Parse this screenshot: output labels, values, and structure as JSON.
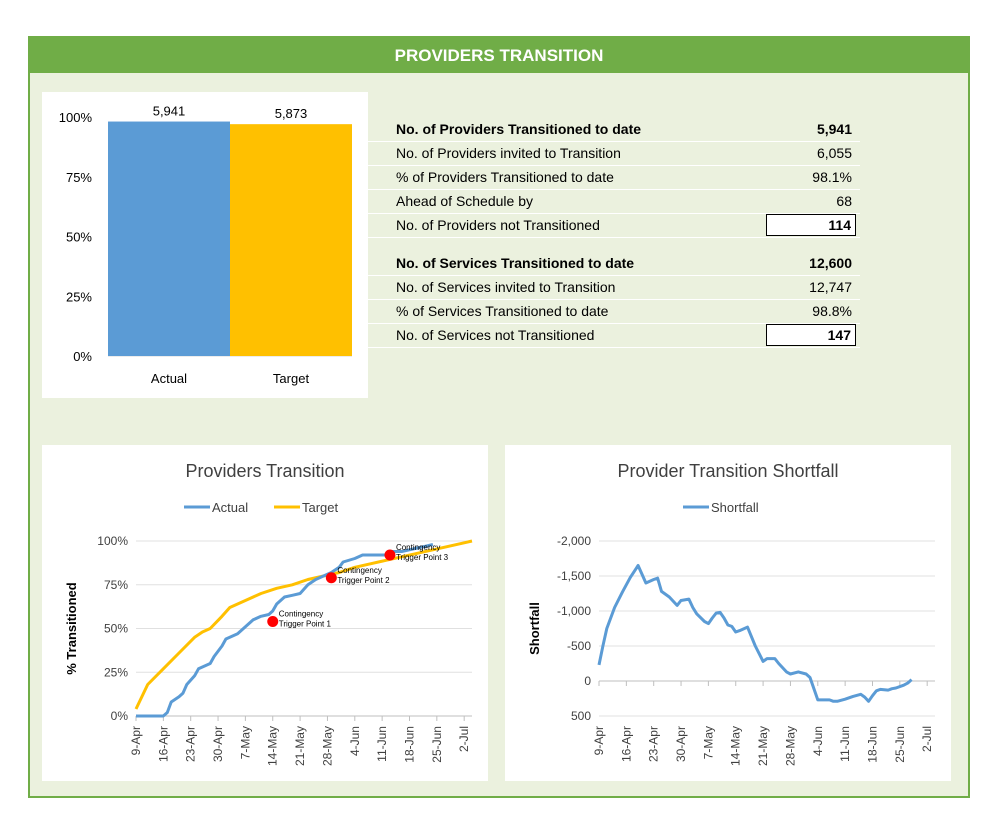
{
  "header": {
    "title": "PROVIDERS TRANSITION"
  },
  "summary_stats": {
    "providers": [
      {
        "label": "No. of Providers Transitioned to date",
        "value": "5,941",
        "bold": true,
        "boxed": false
      },
      {
        "label": "No. of Providers invited to Transition",
        "value": "6,055",
        "bold": false,
        "boxed": false
      },
      {
        "label": "% of Providers Transitioned to date",
        "value": "98.1%",
        "bold": false,
        "boxed": false
      },
      {
        "label": "Ahead of Schedule by",
        "value": "68",
        "bold": false,
        "boxed": false
      },
      {
        "label": "No. of Providers not Transitioned",
        "value": "114",
        "bold": false,
        "boxed": true
      }
    ],
    "services": [
      {
        "label": "No. of Services Transitioned to date",
        "value": "12,600",
        "bold": true,
        "boxed": false
      },
      {
        "label": "No. of Services invited to Transition",
        "value": "12,747",
        "bold": false,
        "boxed": false
      },
      {
        "label": "% of Services Transitioned to date",
        "value": "98.8%",
        "bold": false,
        "boxed": false
      },
      {
        "label": "No. of Services not Transitioned",
        "value": "147",
        "bold": false,
        "boxed": true
      }
    ]
  },
  "chart_data": [
    {
      "type": "bar",
      "title": "",
      "categories": [
        "Actual",
        "Target"
      ],
      "values": [
        98.1,
        97.0
      ],
      "data_labels": [
        "5,941",
        "5,873"
      ],
      "colors": [
        "#5b9bd5",
        "#ffc000"
      ],
      "ylim": [
        0,
        100
      ],
      "y_ticks": [
        "0%",
        "25%",
        "50%",
        "75%",
        "100%"
      ],
      "y_tick_values": [
        0,
        25,
        50,
        75,
        100
      ]
    },
    {
      "type": "line",
      "title": "Providers Transition",
      "ylabel": "% Transitioned",
      "legend_position": "top",
      "ylim": [
        0,
        100
      ],
      "xlim": [
        0,
        86
      ],
      "y_ticks": [
        "0%",
        "25%",
        "50%",
        "75%",
        "100%"
      ],
      "y_tick_values": [
        0,
        25,
        50,
        75,
        100
      ],
      "x_ticks": [
        "9-Apr",
        "16-Apr",
        "23-Apr",
        "30-Apr",
        "7-May",
        "14-May",
        "21-May",
        "28-May",
        "4-Jun",
        "11-Jun",
        "18-Jun",
        "25-Jun",
        "2-Jul"
      ],
      "x_tick_values": [
        0,
        7,
        14,
        21,
        28,
        35,
        42,
        49,
        56,
        63,
        70,
        77,
        84
      ],
      "series": [
        {
          "name": "Actual",
          "color": "#5b9bd5",
          "points": [
            [
              0,
              0
            ],
            [
              7,
              0
            ],
            [
              8,
              2
            ],
            [
              9,
              8
            ],
            [
              11,
              11
            ],
            [
              12,
              13
            ],
            [
              13,
              18
            ],
            [
              15,
              23
            ],
            [
              16,
              27
            ],
            [
              18,
              29
            ],
            [
              19,
              30
            ],
            [
              20,
              34
            ],
            [
              22,
              40
            ],
            [
              23,
              44
            ],
            [
              25,
              46
            ],
            [
              26,
              47
            ],
            [
              28,
              51
            ],
            [
              30,
              55
            ],
            [
              32,
              57
            ],
            [
              34,
              58
            ],
            [
              35,
              60
            ],
            [
              36,
              64
            ],
            [
              38,
              68
            ],
            [
              40,
              69
            ],
            [
              42,
              70
            ],
            [
              44,
              75
            ],
            [
              46,
              78
            ],
            [
              48,
              80
            ],
            [
              50,
              82
            ],
            [
              52,
              85
            ],
            [
              53,
              88
            ],
            [
              56,
              90
            ],
            [
              58,
              92
            ],
            [
              62,
              92
            ],
            [
              64,
              92
            ],
            [
              65,
              94
            ],
            [
              68,
              94
            ],
            [
              70,
              95
            ],
            [
              72,
              96
            ],
            [
              74,
              97
            ],
            [
              76,
              98
            ]
          ]
        },
        {
          "name": "Target",
          "color": "#ffc000",
          "points": [
            [
              0,
              4
            ],
            [
              3,
              18
            ],
            [
              7,
              27
            ],
            [
              11,
              36
            ],
            [
              15,
              45
            ],
            [
              17,
              48
            ],
            [
              19,
              50
            ],
            [
              22,
              57
            ],
            [
              24,
              62
            ],
            [
              28,
              66
            ],
            [
              32,
              70
            ],
            [
              36,
              73
            ],
            [
              40,
              75
            ],
            [
              44,
              78
            ],
            [
              48,
              80
            ],
            [
              52,
              82
            ],
            [
              56,
              85
            ],
            [
              60,
              87
            ],
            [
              64,
              89
            ],
            [
              68,
              91
            ],
            [
              72,
              93
            ],
            [
              76,
              95
            ],
            [
              80,
              97
            ],
            [
              84,
              99
            ],
            [
              86,
              100
            ]
          ]
        }
      ],
      "annotations": [
        {
          "text": [
            "Contingency",
            "Trigger Point 1"
          ],
          "x": 35,
          "y": 54
        },
        {
          "text": [
            "Contingency",
            "Trigger Point 2"
          ],
          "x": 50,
          "y": 79
        },
        {
          "text": [
            "Contingency",
            "Trigger Point 3"
          ],
          "x": 65,
          "y": 92
        }
      ]
    },
    {
      "type": "line",
      "title": "Provider Transition Shortfall",
      "ylabel": "Shortfall",
      "legend_position": "top",
      "ylim": [
        500,
        -2000
      ],
      "xlim": [
        0,
        86
      ],
      "y_ticks": [
        "500",
        "0",
        "-500",
        "-1,000",
        "-1,500",
        "-2,000"
      ],
      "y_tick_values": [
        500,
        0,
        -500,
        -1000,
        -1500,
        -2000
      ],
      "x_ticks": [
        "9-Apr",
        "16-Apr",
        "23-Apr",
        "30-Apr",
        "7-May",
        "14-May",
        "21-May",
        "28-May",
        "4-Jun",
        "11-Jun",
        "18-Jun",
        "25-Jun",
        "2-Jul"
      ],
      "x_tick_values": [
        0,
        7,
        14,
        21,
        28,
        35,
        42,
        49,
        56,
        63,
        70,
        77,
        84
      ],
      "series": [
        {
          "name": "Shortfall",
          "color": "#5b9bd5",
          "points": [
            [
              0,
              -230
            ],
            [
              1,
              -500
            ],
            [
              2,
              -750
            ],
            [
              4,
              -1050
            ],
            [
              6,
              -1270
            ],
            [
              8,
              -1480
            ],
            [
              10,
              -1650
            ],
            [
              12,
              -1400
            ],
            [
              14,
              -1450
            ],
            [
              15,
              -1470
            ],
            [
              16,
              -1280
            ],
            [
              18,
              -1200
            ],
            [
              20,
              -1080
            ],
            [
              21,
              -1150
            ],
            [
              23,
              -1170
            ],
            [
              24,
              -1050
            ],
            [
              25,
              -960
            ],
            [
              27,
              -850
            ],
            [
              28,
              -820
            ],
            [
              29,
              -900
            ],
            [
              30,
              -970
            ],
            [
              31,
              -980
            ],
            [
              32,
              -900
            ],
            [
              33,
              -800
            ],
            [
              34,
              -780
            ],
            [
              35,
              -700
            ],
            [
              36,
              -720
            ],
            [
              38,
              -770
            ],
            [
              40,
              -500
            ],
            [
              42,
              -280
            ],
            [
              43,
              -320
            ],
            [
              45,
              -320
            ],
            [
              46,
              -250
            ],
            [
              48,
              -130
            ],
            [
              49,
              -100
            ],
            [
              51,
              -130
            ],
            [
              53,
              -100
            ],
            [
              54,
              -50
            ],
            [
              56,
              270
            ],
            [
              58,
              270
            ],
            [
              59,
              270
            ],
            [
              60,
              290
            ],
            [
              61,
              290
            ],
            [
              63,
              260
            ],
            [
              65,
              220
            ],
            [
              67,
              190
            ],
            [
              68,
              230
            ],
            [
              69,
              290
            ],
            [
              70,
              210
            ],
            [
              71,
              140
            ],
            [
              72,
              120
            ],
            [
              74,
              130
            ],
            [
              75,
              110
            ],
            [
              76,
              100
            ],
            [
              78,
              60
            ],
            [
              79,
              30
            ],
            [
              80,
              -20
            ]
          ]
        }
      ],
      "annotations": []
    }
  ]
}
